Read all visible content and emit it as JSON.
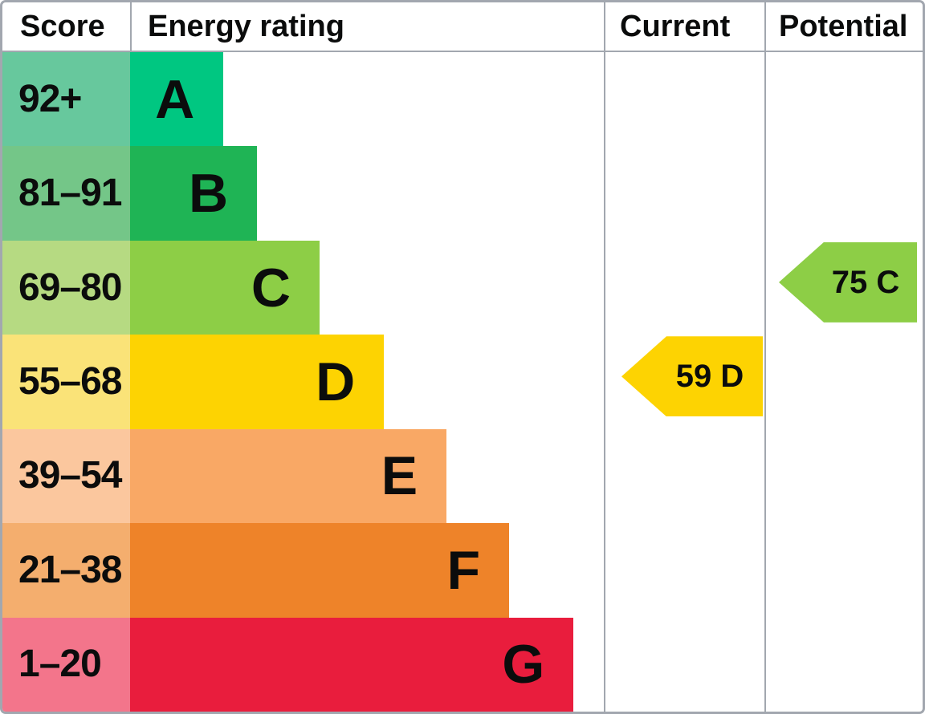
{
  "chart_data": {
    "type": "bar",
    "title": "Energy rating (EPC) band chart",
    "legend_position": "none",
    "columns": [
      "Score",
      "Energy rating",
      "Current",
      "Potential"
    ],
    "bands": [
      {
        "range": "92+",
        "letter": "A",
        "bar_color": "#00c781",
        "score_cell_color": "#67c89d",
        "bar_width_pct": 19.7
      },
      {
        "range": "81–91",
        "letter": "B",
        "bar_color": "#1fb455",
        "score_cell_color": "#74c688",
        "bar_width_pct": 26.8
      },
      {
        "range": "69–80",
        "letter": "C",
        "bar_color": "#8dce46",
        "score_cell_color": "#b6da82",
        "bar_width_pct": 40.0
      },
      {
        "range": "55–68",
        "letter": "D",
        "bar_color": "#fdd302",
        "score_cell_color": "#fae378",
        "bar_width_pct": 53.6
      },
      {
        "range": "39–54",
        "letter": "E",
        "bar_color": "#f9a865",
        "score_cell_color": "#fbc79e",
        "bar_width_pct": 66.8
      },
      {
        "range": "21–38",
        "letter": "F",
        "bar_color": "#ee8329",
        "score_cell_color": "#f4ae6e",
        "bar_width_pct": 80.0
      },
      {
        "range": "1–20",
        "letter": "G",
        "bar_color": "#e91d3d",
        "score_cell_color": "#f3758b",
        "bar_width_pct": 93.6
      }
    ],
    "current": {
      "value": 59,
      "band": "D",
      "label": "59 D",
      "color": "#fdd302"
    },
    "potential": {
      "value": 75,
      "band": "C",
      "label": "75 C",
      "color": "#8dce46"
    }
  },
  "colors": {
    "border": "#a2a7af",
    "text": "#0b0c0c",
    "background": "#ffffff"
  }
}
